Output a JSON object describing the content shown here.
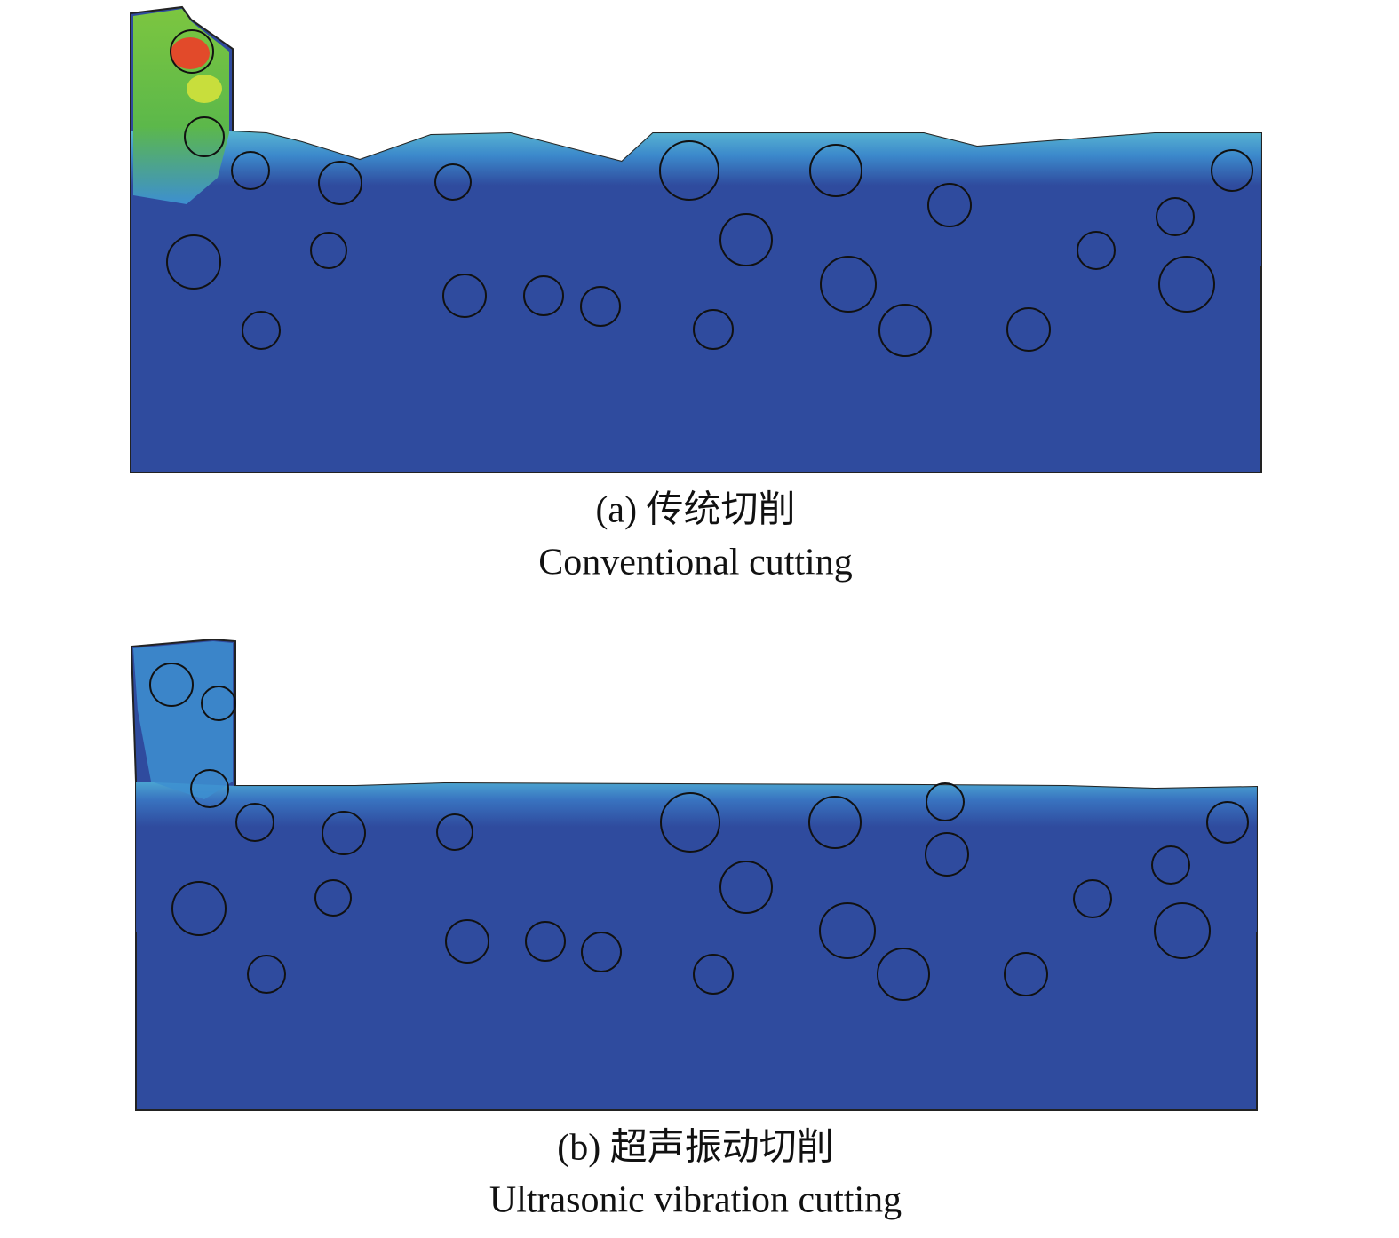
{
  "figure": {
    "panels": [
      {
        "caption_cn": "(a) 传统切削",
        "caption_en": "Conventional cutting"
      },
      {
        "caption_cn": "(b) 超声振动切削",
        "caption_en": "Ultrasonic vibration cutting"
      }
    ]
  }
}
